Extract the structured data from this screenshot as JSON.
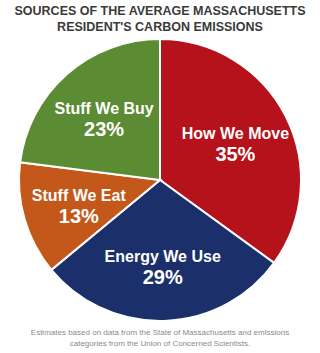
{
  "chart_data": {
    "type": "pie",
    "title": "SOURCES OF THE AVERAGE MASSACHUSETTS RESIDENT'S CARBON EMISSIONS",
    "categories": [
      "How We Move",
      "Energy We Use",
      "Stuff We Eat",
      "Stuff We Buy"
    ],
    "values": [
      35,
      29,
      13,
      23
    ],
    "value_labels": [
      "35%",
      "29%",
      "13%",
      "23%"
    ],
    "colors": [
      "#b5121b",
      "#1b2f6b",
      "#c4581b",
      "#5b8b33"
    ],
    "data_labels": true,
    "annotations": [
      "Estimates based on data from the State of Massachusetts and emissions categories from the Union of Concerned Scientists."
    ]
  }
}
